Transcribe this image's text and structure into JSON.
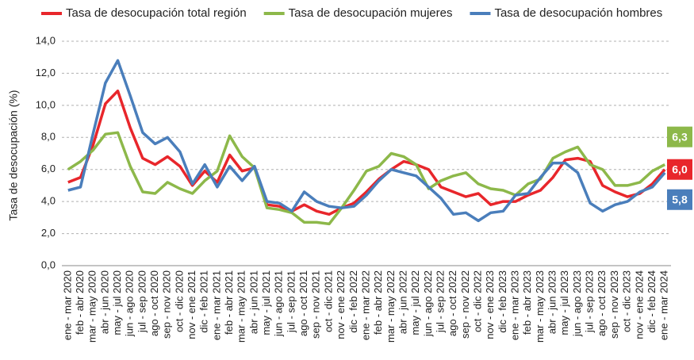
{
  "chart_data": {
    "type": "line",
    "y_label": "Tasa de desocupación (%)",
    "categories": [
      "ene - mar 2020",
      "feb - abr 2020",
      "mar - may 2020",
      "abr - jun 2020",
      "may - jul 2020",
      "jun - ago 2020",
      "jul - sep 2020",
      "ago - oct 2020",
      "sep - nov 2020",
      "oct - dic 2020",
      "nov - ene 2021",
      "dic - feb 2021",
      "ene - mar 2021",
      "feb - abr 2021",
      "mar - may 2021",
      "abr - jun 2021",
      "may - jul 2021",
      "jun - ago 2021",
      "jul - sep 2021",
      "ago - oct 2021",
      "sep - nov 2021",
      "oct - dic 2021",
      "nov - ene 2022",
      "dic - feb 2022",
      "ene - mar 2022",
      "feb - abr 2022",
      "mar - may 2022",
      "abr - jun 2022",
      "may - jul 2022",
      "jun - ago 2022",
      "jul - sep 2022",
      "ago - oct 2022",
      "sep - nov 2022",
      "oct - dic 2022",
      "nov - ene 2023",
      "dic - feb 2023",
      "ene - mar 2023",
      "feb - abr 2023",
      "mar - may 2023",
      "abr - jun 2023",
      "may - jul 2023",
      "jun - ago 2023",
      "jul - sep 2023",
      "ago - oct 2023",
      "sep - nov 2023",
      "oct - dic 2023",
      "nov - ene 2024",
      "dic - feb 2024",
      "ene - mar 2024"
    ],
    "series": [
      {
        "name": "Tasa de desocupación total región",
        "color": "#e8262b",
        "end_label": "6,0",
        "values": [
          5.2,
          5.5,
          7.5,
          10.1,
          10.9,
          8.6,
          6.7,
          6.3,
          6.8,
          6.2,
          5.0,
          5.9,
          5.2,
          6.9,
          5.9,
          6.1,
          3.8,
          3.7,
          3.4,
          3.8,
          3.4,
          3.2,
          3.6,
          3.9,
          4.6,
          5.4,
          6.0,
          6.5,
          6.3,
          6.0,
          4.9,
          4.6,
          4.3,
          4.5,
          3.8,
          4.0,
          4.0,
          4.4,
          4.7,
          5.5,
          6.6,
          6.7,
          6.5,
          5.0,
          4.6,
          4.3,
          4.5,
          5.1,
          6.0
        ]
      },
      {
        "name": "Tasa de desocupación mujeres",
        "color": "#8db84a",
        "end_label": "6,3",
        "values": [
          6.0,
          6.5,
          7.2,
          8.2,
          8.3,
          6.2,
          4.6,
          4.5,
          5.2,
          4.8,
          4.5,
          5.3,
          5.9,
          8.1,
          6.8,
          6.1,
          3.6,
          3.5,
          3.3,
          2.7,
          2.7,
          2.6,
          3.6,
          4.7,
          5.9,
          6.2,
          7.0,
          6.8,
          6.3,
          4.8,
          5.3,
          5.6,
          5.8,
          5.1,
          4.8,
          4.7,
          4.4,
          5.1,
          5.4,
          6.7,
          7.1,
          7.4,
          6.3,
          6.0,
          5.0,
          5.0,
          5.2,
          5.9,
          6.3
        ]
      },
      {
        "name": "Tasa de desocupación hombres",
        "color": "#4a7ebb",
        "end_label": "5,8",
        "values": [
          4.7,
          4.9,
          8.2,
          11.4,
          12.8,
          10.6,
          8.3,
          7.6,
          8.0,
          7.1,
          5.1,
          6.3,
          4.9,
          6.2,
          5.3,
          6.2,
          4.0,
          3.9,
          3.4,
          4.6,
          4.0,
          3.7,
          3.6,
          3.7,
          4.4,
          5.3,
          6.0,
          5.8,
          5.6,
          4.9,
          4.2,
          3.2,
          3.3,
          2.8,
          3.3,
          3.4,
          4.4,
          4.5,
          5.5,
          6.4,
          6.4,
          5.8,
          3.9,
          3.4,
          3.8,
          4.0,
          4.6,
          4.9,
          5.8
        ]
      }
    ],
    "ylim": [
      0,
      14
    ],
    "yticks": [
      {
        "value": 0,
        "label": "0,0"
      },
      {
        "value": 2,
        "label": "2,0"
      },
      {
        "value": 4,
        "label": "4,0"
      },
      {
        "value": 6,
        "label": "6,0"
      },
      {
        "value": 8,
        "label": "8,0"
      },
      {
        "value": 10,
        "label": "10,0"
      },
      {
        "value": 12,
        "label": "12,0"
      },
      {
        "value": 14,
        "label": "14,0"
      }
    ],
    "grid": true,
    "legend": "top"
  }
}
